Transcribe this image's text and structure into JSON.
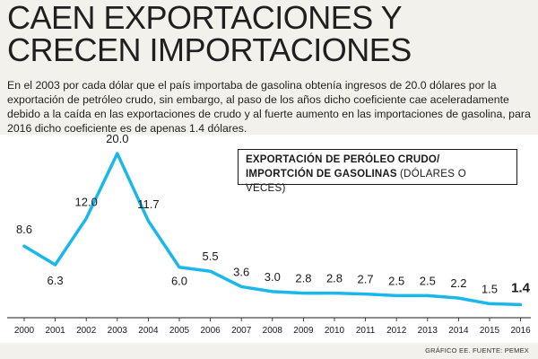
{
  "headline": "CAEN EXPORTACIONES Y CRECEN IMPORTACIONES",
  "lede": "En el 2003 por cada dólar que el país importaba de gasolina obtenía ingresos de 20.0 dólares por la exportación de petróleo crudo, sin embargo, al paso de los años dicho coeficiente cae aceleradamente debido a la caída en las exportaciones de crudo y al fuerte aumento en las importaciones de gasolina, para 2016 dicho coeficiente es de apenas 1.4 dólares.",
  "legend": {
    "line1": "EXPORTACIÓN DE PERÓLEO CRUDO/",
    "line2": "IMPORTCIÓN DE GASOLINAS",
    "unit": "(DÓLARES O VECES)"
  },
  "credit": "GRÁFICO EE. FUENTE: PEMEX",
  "colors": {
    "line": "#1ab8ea",
    "text": "#1a1a1a",
    "background": "#f3f1ec"
  },
  "chart_data": {
    "type": "line",
    "title": "EXPORTACIÓN DE PERÓLEO CRUDO/ IMPORTCIÓN DE GASOLINAS (DÓLARES O VECES)",
    "xlabel": "",
    "ylabel": "",
    "ylim": [
      0,
      21
    ],
    "categories": [
      "2000",
      "2001",
      "2002",
      "2003",
      "2004",
      "2005",
      "2006",
      "2007",
      "2008",
      "2009",
      "2010",
      "2011",
      "2012",
      "2013",
      "2014",
      "2015",
      "2016"
    ],
    "values": [
      8.6,
      6.3,
      12.0,
      20.0,
      11.7,
      6.0,
      5.5,
      3.6,
      3.0,
      2.8,
      2.8,
      2.7,
      2.5,
      2.5,
      2.2,
      1.5,
      1.4
    ],
    "labels": [
      "8.6",
      "6.3",
      "12.0",
      "20.0",
      "11.7",
      "6.0",
      "5.5",
      "3.6",
      "3.0",
      "2.8",
      "2.8",
      "2.7",
      "2.5",
      "2.5",
      "2.2",
      "1.5",
      "1.4"
    ],
    "highlight_last": true
  }
}
